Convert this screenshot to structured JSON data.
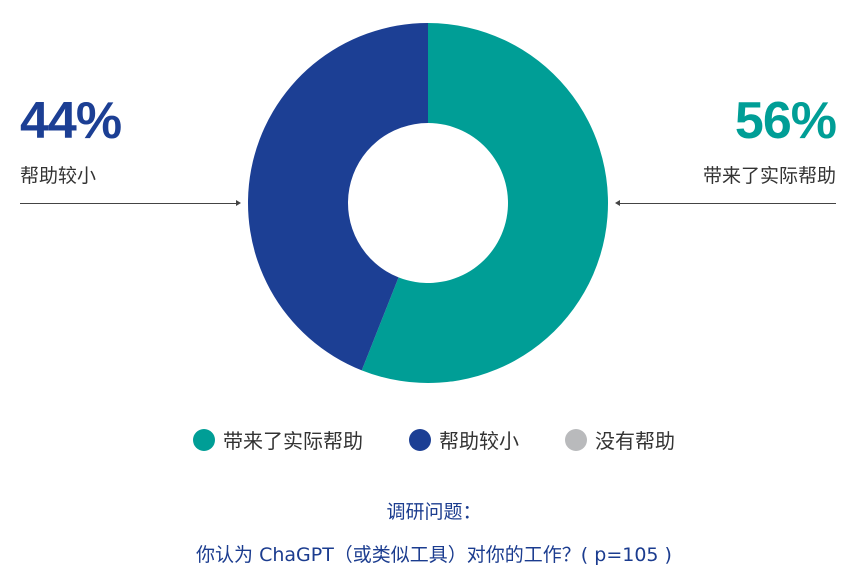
{
  "chart_data": {
    "type": "pie",
    "donut": true,
    "slices": [
      {
        "label": "带来了实际帮助",
        "value": 56,
        "color": "#009e96"
      },
      {
        "label": "帮助较小",
        "value": 44,
        "color": "#1c3f94"
      }
    ],
    "legend": [
      {
        "label": "带来了实际帮助",
        "color": "#009e96"
      },
      {
        "label": "帮助较小",
        "color": "#1c3f94"
      },
      {
        "label": "没有帮助",
        "color": "#b9babc"
      }
    ],
    "callouts": {
      "left": {
        "percent": "44%",
        "label": "帮助较小",
        "color": "#1c3f94"
      },
      "right": {
        "percent": "56%",
        "label": "带来了实际帮助",
        "color": "#009e96"
      }
    },
    "legend_position": "bottom"
  },
  "survey": {
    "title": "调研问题：",
    "question": "你认为 ChaGPT（或类似工具）对你的工作？( p=105 )"
  }
}
